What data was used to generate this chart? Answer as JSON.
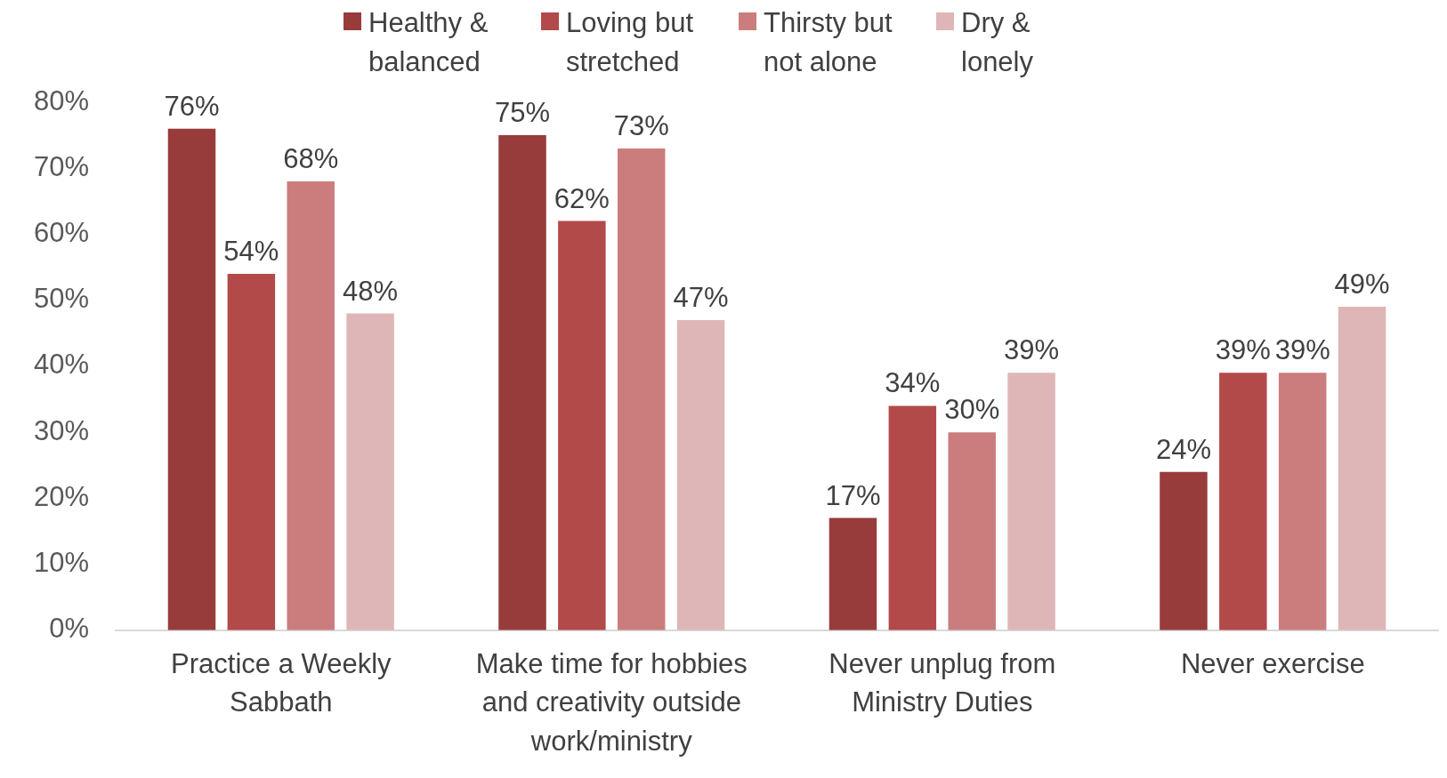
{
  "chart_data": {
    "type": "bar",
    "categories": [
      "Practice a Weekly Sabbath",
      "Make time for hobbies and creativity outside work/ministry",
      "Never unplug from Ministry Duties",
      "Never exercise"
    ],
    "series": [
      {
        "name": "Healthy & balanced",
        "color": "#983b3b",
        "values": [
          76,
          75,
          17,
          24
        ],
        "value_labels": [
          "76%",
          "75%",
          "17%",
          "24%"
        ]
      },
      {
        "name": "Loving but stretched",
        "color": "#b34a4a",
        "values": [
          54,
          62,
          34,
          39
        ],
        "value_labels": [
          "54%",
          "62%",
          "34%",
          "39%"
        ]
      },
      {
        "name": "Thirsty but not alone",
        "color": "#cb7d7d",
        "values": [
          68,
          73,
          30,
          39
        ],
        "value_labels": [
          "68%",
          "73%",
          "30%",
          "39%"
        ]
      },
      {
        "name": "Dry & lonely",
        "color": "#dfb6b7",
        "values": [
          48,
          47,
          39,
          49
        ],
        "value_labels": [
          "48%",
          "47%",
          "39%",
          "49%"
        ]
      }
    ],
    "ylim": [
      0,
      80
    ],
    "yticks": [
      {
        "value": 0,
        "label": "0%"
      },
      {
        "value": 10,
        "label": "10%"
      },
      {
        "value": 20,
        "label": "20%"
      },
      {
        "value": 30,
        "label": "30%"
      },
      {
        "value": 40,
        "label": "40%"
      },
      {
        "value": 50,
        "label": "50%"
      },
      {
        "value": 60,
        "label": "60%"
      },
      {
        "value": 70,
        "label": "70%"
      },
      {
        "value": 80,
        "label": "80%"
      }
    ],
    "grid": false,
    "legend": "top"
  }
}
